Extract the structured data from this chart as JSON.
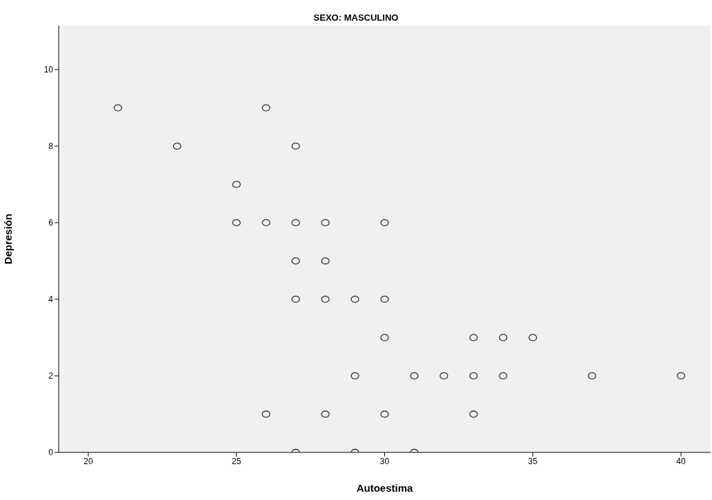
{
  "chart_data": {
    "type": "scatter",
    "title": "SEXO: MASCULINO",
    "xlabel": "Autoestima",
    "ylabel": "Depresión",
    "x": [
      21,
      23,
      26,
      27,
      25,
      25,
      26,
      27,
      28,
      30,
      27,
      28,
      27,
      28,
      29,
      30,
      30,
      33,
      34,
      35,
      29,
      31,
      32,
      33,
      34,
      37,
      40,
      26,
      28,
      30,
      33,
      27,
      29,
      31
    ],
    "values": [
      9,
      8,
      9,
      8,
      7,
      6,
      6,
      6,
      6,
      6,
      5,
      5,
      4,
      4,
      4,
      4,
      3,
      3,
      3,
      3,
      2,
      2,
      2,
      2,
      2,
      2,
      2,
      1,
      1,
      1,
      1,
      0,
      0,
      0
    ],
    "color": "#333333",
    "marker": "circle",
    "xlim": [
      19,
      41
    ],
    "ylim": [
      0,
      11.15
    ],
    "xticks": [
      20,
      25,
      30,
      35,
      40
    ],
    "yticks": [
      0,
      2,
      4,
      6,
      8,
      10
    ],
    "grid": false,
    "legend": false
  }
}
